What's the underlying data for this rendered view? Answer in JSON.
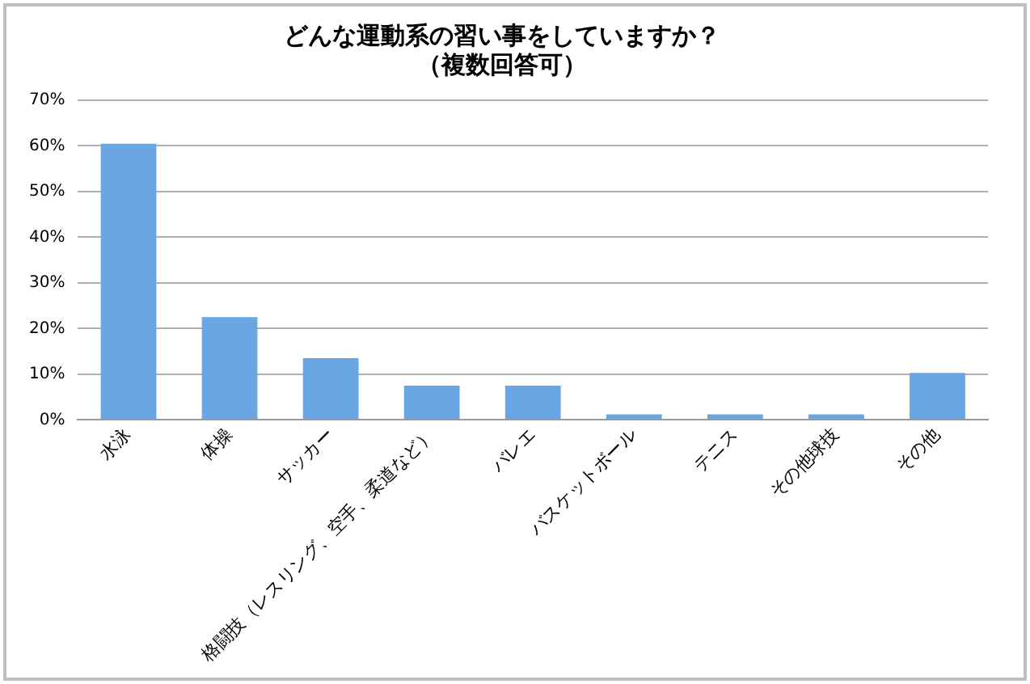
{
  "chart_data": {
    "type": "bar",
    "title": [
      "どんな運動系の習い事をしていますか？",
      "（複数回答可）"
    ],
    "categories": [
      "水泳",
      "体操",
      "サッカー",
      "格闘技（レスリング、空手、柔道など）",
      "バレエ",
      "バスケットボール",
      "テニス",
      "その他球技",
      "その他"
    ],
    "values": [
      60.5,
      22.5,
      13.5,
      7.5,
      7.5,
      1.2,
      1.2,
      1.2,
      10.3
    ],
    "color": "#6aa5e4",
    "ylim": [
      0,
      70
    ],
    "yticks": [
      {
        "value": 0,
        "label": "0%"
      },
      {
        "value": 10,
        "label": "10%"
      },
      {
        "value": 20,
        "label": "20%"
      },
      {
        "value": 30,
        "label": "30%"
      },
      {
        "value": 40,
        "label": "40%"
      },
      {
        "value": 50,
        "label": "50%"
      },
      {
        "value": 60,
        "label": "60%"
      },
      {
        "value": 70,
        "label": "70%"
      }
    ],
    "grid": "y",
    "legend": false
  }
}
